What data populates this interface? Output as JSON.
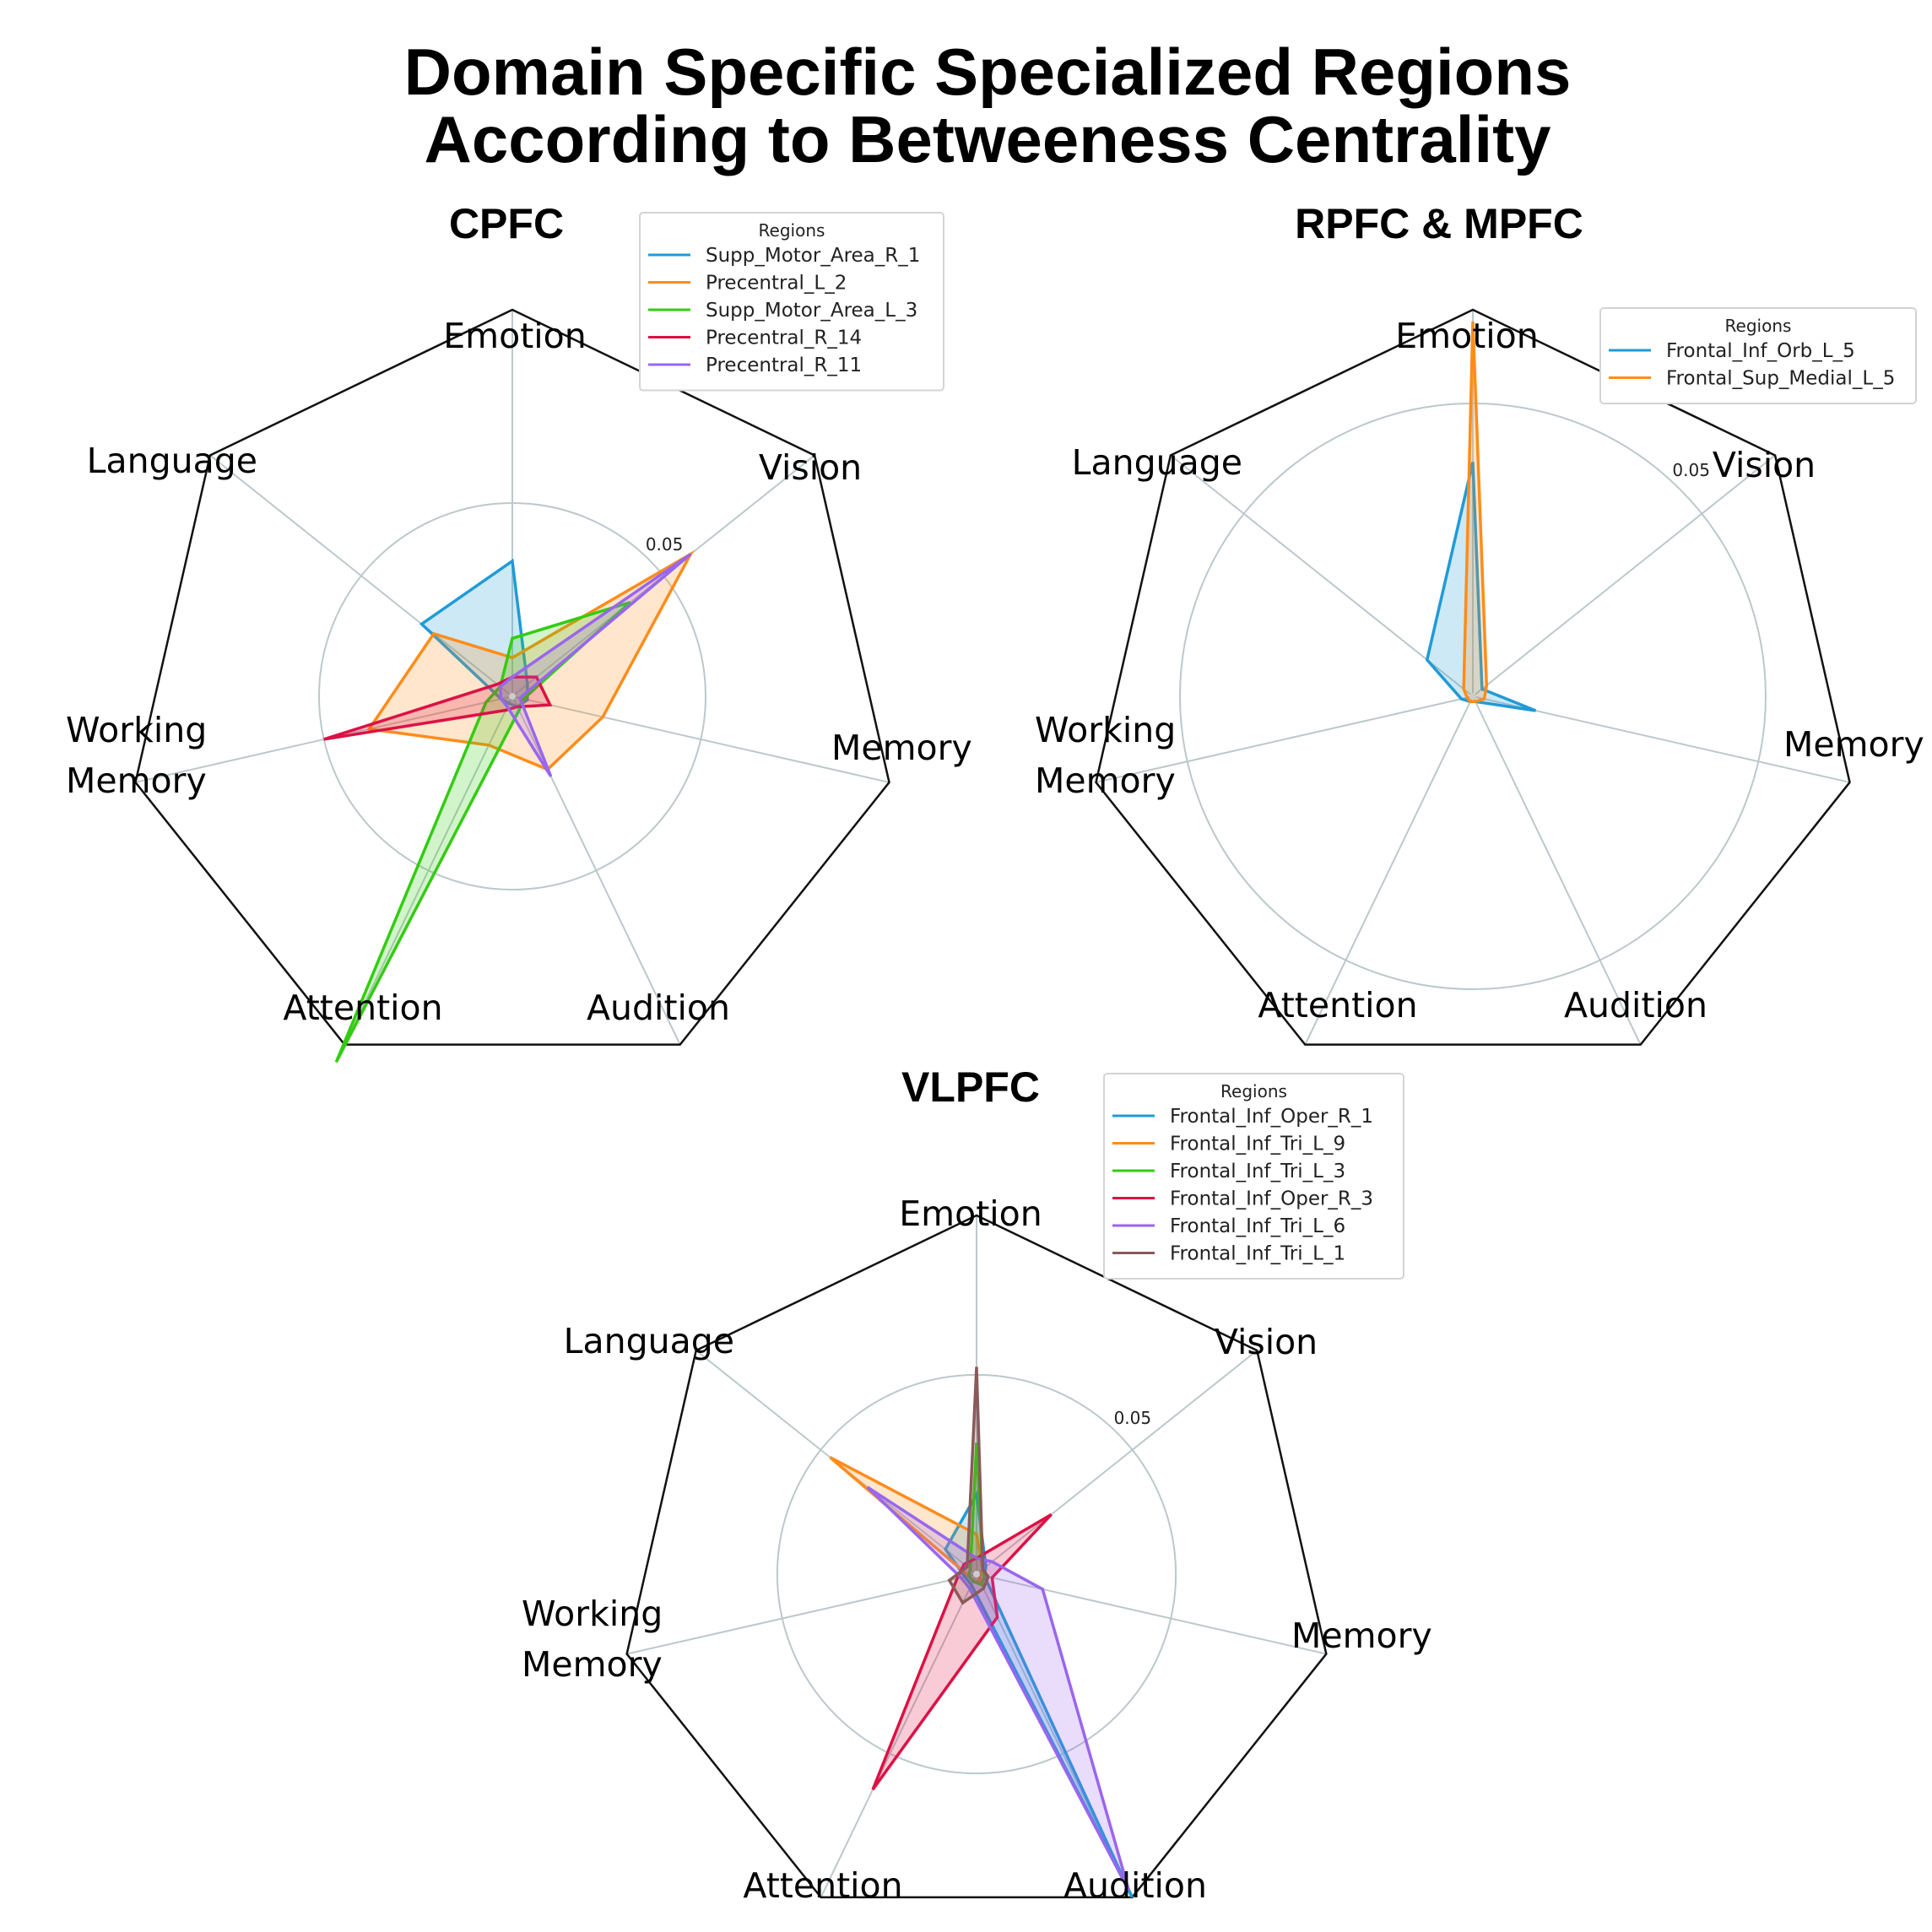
{
  "title_line1": "Domain Specific Specialized Regions",
  "title_line2": "According to Betweeness Centrality",
  "chart_data": [
    {
      "type": "radar",
      "title": "CPFC",
      "axes": [
        "Emotion",
        "Vision",
        "Memory",
        "Audition",
        "Attention",
        "Working Memory",
        "Language"
      ],
      "axis_label_lines": [
        [
          "Emotion"
        ],
        [
          "Vision"
        ],
        [
          "Memory"
        ],
        [
          "Audition"
        ],
        [
          "Attention"
        ],
        [
          "Working",
          "Memory"
        ],
        [
          "Language"
        ]
      ],
      "rmax": 0.1,
      "rgrid": [
        0.05
      ],
      "rgrid_labels": [
        "0.05"
      ],
      "legend_title": "Regions",
      "legend_placement": "top-right",
      "series": [
        {
          "name": "Supp_Motor_Area_R_1",
          "color": "#1f9bd7",
          "values": [
            0.035,
            0.005,
            0.004,
            0.003,
            0.002,
            0.003,
            0.03
          ]
        },
        {
          "name": "Precentral_L_2",
          "color": "#ff8c1a",
          "values": [
            0.01,
            0.059,
            0.024,
            0.021,
            0.014,
            0.038,
            0.026
          ]
        },
        {
          "name": "Supp_Motor_Area_L_3",
          "color": "#33cc11",
          "values": [
            0.015,
            0.039,
            0.003,
            0.004,
            0.105,
            0.007,
            0.004
          ]
        },
        {
          "name": "Precentral_R_14",
          "color": "#dd1144",
          "values": [
            0.005,
            0.008,
            0.01,
            0.003,
            0.004,
            0.05,
            0.005
          ]
        },
        {
          "name": "Precentral_R_11",
          "color": "#9966ee",
          "values": [
            0.005,
            0.059,
            0.002,
            0.023,
            0.003,
            0.003,
            0.004
          ]
        }
      ]
    },
    {
      "type": "radar",
      "title": "RPFC & MPFC",
      "axes": [
        "Emotion",
        "Vision",
        "Memory",
        "Audition",
        "Attention",
        "Working Memory",
        "Language"
      ],
      "axis_label_lines": [
        [
          "Emotion"
        ],
        [
          "Vision"
        ],
        [
          "Memory"
        ],
        [
          "Audition"
        ],
        [
          "Attention"
        ],
        [
          "Working",
          "Memory"
        ],
        [
          "Language"
        ]
      ],
      "rmax": 0.066,
      "rgrid": [
        0.05
      ],
      "rgrid_labels": [
        "0.05"
      ],
      "legend_title": "Regions",
      "legend_placement": "top-right",
      "series": [
        {
          "name": "Frontal_Inf_Orb_L_5",
          "color": "#1f9bd7",
          "values": [
            0.04,
            0.002,
            0.011,
            0.001,
            0.001,
            0.002,
            0.01
          ]
        },
        {
          "name": "Frontal_Sup_Medial_L_5",
          "color": "#ff8c1a",
          "values": [
            0.064,
            0.003,
            0.002,
            0.001,
            0.001,
            0.001,
            0.002
          ]
        }
      ]
    },
    {
      "type": "radar",
      "title": "VLPFC",
      "axes": [
        "Emotion",
        "Vision",
        "Memory",
        "Audition",
        "Attention",
        "Working Memory",
        "Language"
      ],
      "axis_label_lines": [
        [
          "Emotion"
        ],
        [
          "Vision"
        ],
        [
          "Memory"
        ],
        [
          "Audition"
        ],
        [
          "Attention"
        ],
        [
          "Working",
          "Memory"
        ],
        [
          "Language"
        ]
      ],
      "rmax": 0.09,
      "rgrid": [
        0.05
      ],
      "rgrid_labels": [
        "0.05"
      ],
      "legend_title": "Regions",
      "legend_placement": "top-right",
      "series": [
        {
          "name": "Frontal_Inf_Oper_R_1",
          "color": "#1f9bd7",
          "values": [
            0.02,
            0.003,
            0.002,
            0.09,
            0.003,
            0.003,
            0.01
          ]
        },
        {
          "name": "Frontal_Inf_Tri_L_9",
          "color": "#ff8c1a",
          "values": [
            0.01,
            0.002,
            0.001,
            0.002,
            0.002,
            0.002,
            0.047
          ]
        },
        {
          "name": "Frontal_Inf_Tri_L_3",
          "color": "#33cc11",
          "values": [
            0.033,
            0.002,
            0.002,
            0.003,
            0.002,
            0.002,
            0.002
          ]
        },
        {
          "name": "Frontal_Inf_Oper_R_3",
          "color": "#dd1144",
          "values": [
            0.004,
            0.024,
            0.004,
            0.012,
            0.06,
            0.005,
            0.004
          ]
        },
        {
          "name": "Frontal_Inf_Tri_L_6",
          "color": "#9966ee",
          "values": [
            0.004,
            0.005,
            0.017,
            0.088,
            0.004,
            0.004,
            0.035
          ]
        },
        {
          "name": "Frontal_Inf_Tri_L_1",
          "color": "#8a5a5a",
          "values": [
            0.052,
            0.002,
            0.003,
            0.004,
            0.008,
            0.007,
            0.003
          ]
        }
      ]
    }
  ]
}
